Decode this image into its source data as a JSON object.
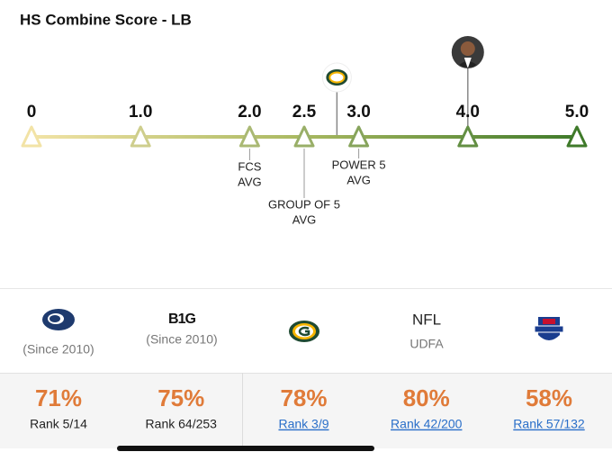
{
  "header": {
    "title": "HS Combine Score - LB"
  },
  "scale": {
    "min": 0,
    "max": 5,
    "ticks": [
      {
        "value": 0,
        "label": "0"
      },
      {
        "value": 1,
        "label": "1.0"
      },
      {
        "value": 2,
        "label": "2.0"
      },
      {
        "value": 2.5,
        "label": "2.5"
      },
      {
        "value": 3,
        "label": "3.0"
      },
      {
        "value": 4,
        "label": "4.0"
      },
      {
        "value": 5,
        "label": "5.0"
      }
    ],
    "averages": [
      {
        "value": 2,
        "lines": [
          "FCS",
          "AVG"
        ]
      },
      {
        "value": 2.5,
        "lines": [
          "GROUP OF 5",
          "AVG"
        ]
      },
      {
        "value": 3,
        "lines": [
          "POWER 5",
          "AVG"
        ]
      }
    ],
    "team_marker": {
      "value": 2.8
    },
    "player_marker": {
      "value": 4
    }
  },
  "columns": [
    {
      "caption": "(Since 2010)",
      "percent": "71%",
      "rank": "Rank 5/14"
    },
    {
      "logo_text": "B1G",
      "caption": "(Since 2010)",
      "percent": "75%",
      "rank": "Rank 64/253"
    },
    {
      "percent": "78%",
      "rank": "Rank 3/9"
    },
    {
      "heading": "NFL",
      "caption": "UDFA",
      "percent": "80%",
      "rank": "Rank 42/200"
    },
    {
      "percent": "58%",
      "rank": "Rank 57/132"
    }
  ]
}
